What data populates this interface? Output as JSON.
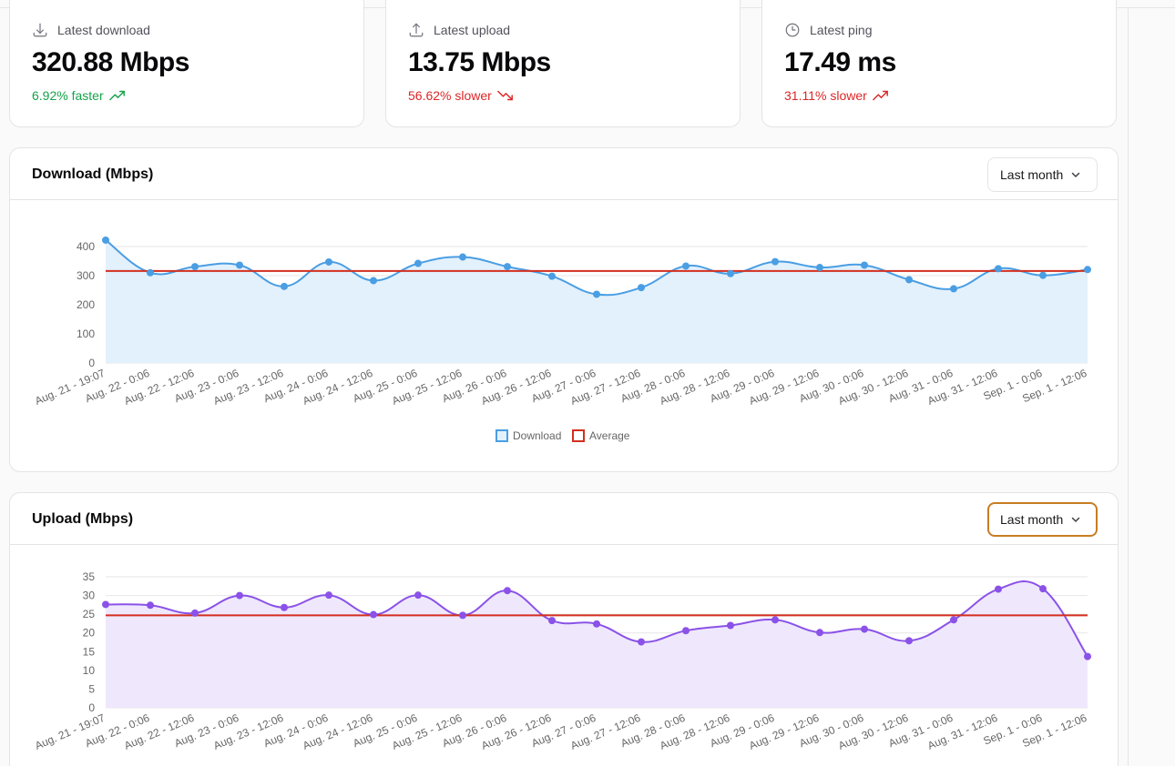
{
  "stats": [
    {
      "label": "Latest download",
      "value": "320.88 Mbps",
      "delta": "6.92% faster",
      "trend": "up",
      "icon": "download-icon"
    },
    {
      "label": "Latest upload",
      "value": "13.75 Mbps",
      "delta": "56.62% slower",
      "trend": "down",
      "icon": "upload-icon"
    },
    {
      "label": "Latest ping",
      "value": "17.49 ms",
      "delta": "31.11% slower",
      "trend": "up-bad",
      "icon": "clock-icon"
    }
  ],
  "colors": {
    "up": "#16a34a",
    "down": "#dc2626",
    "download_line": "#4a9ee3",
    "download_fill": "#e3f1fc",
    "upload_line": "#8a52e8",
    "upload_fill": "#efe8fd",
    "average": "#d32f1f",
    "focus_ring": "#c77d23"
  },
  "download_chart": {
    "title": "Download (Mbps)",
    "range_label": "Last month"
  },
  "upload_chart": {
    "title": "Upload (Mbps)",
    "range_label": "Last month"
  },
  "chart_data": [
    {
      "type": "line",
      "title": "Download (Mbps)",
      "categories": [
        "Aug. 21 - 19:07",
        "Aug. 22 - 0:06",
        "Aug. 22 - 12:06",
        "Aug. 23 - 0:06",
        "Aug. 23 - 12:06",
        "Aug. 24 - 0:06",
        "Aug. 24 - 12:06",
        "Aug. 25 - 0:06",
        "Aug. 25 - 12:06",
        "Aug. 26 - 0:06",
        "Aug. 26 - 12:06",
        "Aug. 27 - 0:06",
        "Aug. 27 - 12:06",
        "Aug. 28 - 0:06",
        "Aug. 28 - 12:06",
        "Aug. 29 - 0:06",
        "Aug. 29 - 12:06",
        "Aug. 30 - 0:06",
        "Aug. 30 - 12:06",
        "Aug. 31 - 0:06",
        "Aug. 31 - 12:06",
        "Sep. 1 - 0:06",
        "Sep. 1 - 12:06"
      ],
      "series": [
        {
          "name": "Download",
          "values": [
            422,
            310,
            331,
            336,
            263,
            347,
            283,
            342,
            364,
            331,
            298,
            236,
            259,
            333,
            307,
            348,
            328,
            336,
            286,
            255,
            324,
            301,
            321
          ],
          "fill": true
        },
        {
          "name": "Average",
          "values": [
            316,
            316,
            316,
            316,
            316,
            316,
            316,
            316,
            316,
            316,
            316,
            316,
            316,
            316,
            316,
            316,
            316,
            316,
            316,
            316,
            316,
            316,
            316
          ]
        }
      ],
      "yticks": [
        0,
        100,
        200,
        300,
        400
      ],
      "ylim": [
        0,
        400
      ],
      "legend": "bottom",
      "grid": true
    },
    {
      "type": "line",
      "title": "Upload (Mbps)",
      "categories": [
        "Aug. 21 - 19:07",
        "Aug. 22 - 0:06",
        "Aug. 22 - 12:06",
        "Aug. 23 - 0:06",
        "Aug. 23 - 12:06",
        "Aug. 24 - 0:06",
        "Aug. 24 - 12:06",
        "Aug. 25 - 0:06",
        "Aug. 25 - 12:06",
        "Aug. 26 - 0:06",
        "Aug. 26 - 12:06",
        "Aug. 27 - 0:06",
        "Aug. 27 - 12:06",
        "Aug. 28 - 0:06",
        "Aug. 28 - 12:06",
        "Aug. 29 - 0:06",
        "Aug. 29 - 12:06",
        "Aug. 30 - 0:06",
        "Aug. 30 - 12:06",
        "Aug. 31 - 0:06",
        "Aug. 31 - 12:06",
        "Sep. 1 - 0:06",
        "Sep. 1 - 12:06"
      ],
      "series": [
        {
          "name": "Upload",
          "values": [
            27.6,
            27.4,
            25.3,
            30.0,
            26.8,
            30.1,
            24.9,
            30.1,
            24.7,
            31.3,
            23.3,
            22.4,
            17.6,
            20.6,
            22.0,
            23.5,
            20.1,
            21.0,
            17.9,
            23.5,
            31.7,
            31.8,
            13.7
          ],
          "fill": true
        },
        {
          "name": "Average",
          "values": [
            24.7,
            24.7,
            24.7,
            24.7,
            24.7,
            24.7,
            24.7,
            24.7,
            24.7,
            24.7,
            24.7,
            24.7,
            24.7,
            24.7,
            24.7,
            24.7,
            24.7,
            24.7,
            24.7,
            24.7,
            24.7,
            24.7,
            24.7
          ]
        }
      ],
      "yticks": [
        0,
        5,
        10,
        15,
        20,
        25,
        30,
        35
      ],
      "ylim": [
        0,
        35
      ],
      "grid": true
    }
  ]
}
